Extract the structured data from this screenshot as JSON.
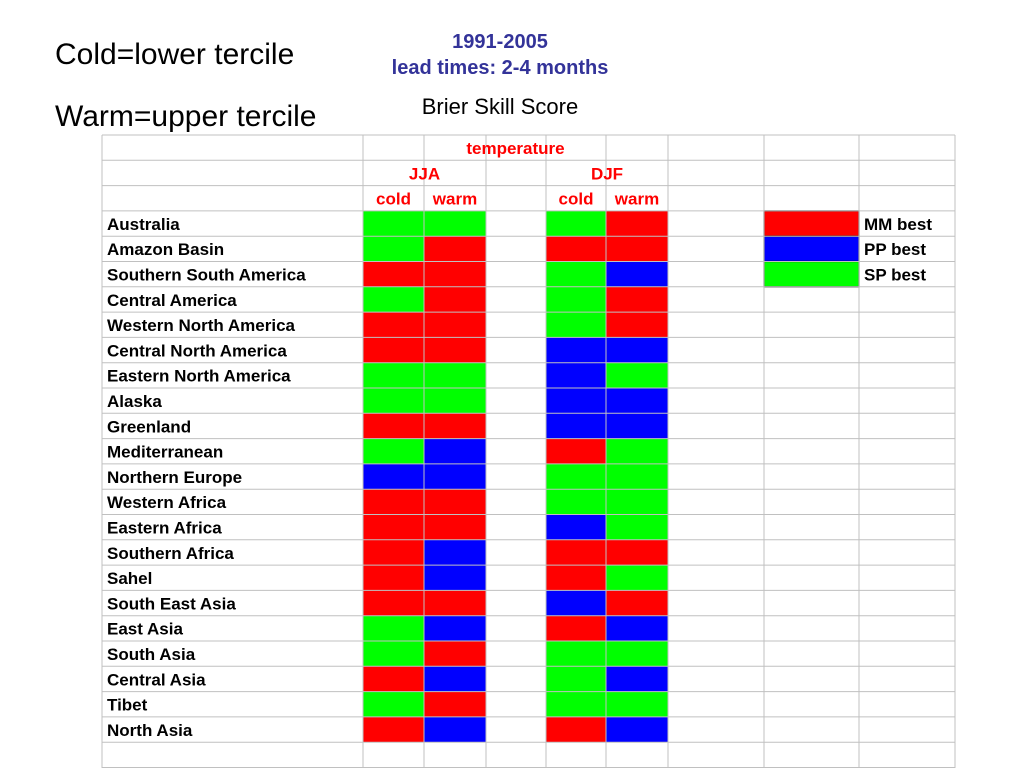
{
  "labels": {
    "cold_def": "Cold=lower tercile",
    "warm_def": "Warm=upper tercile"
  },
  "title": {
    "period": "1991-2005",
    "lead": "lead times: 2-4 months",
    "subtitle": "Brier Skill Score"
  },
  "chart_data": {
    "type": "heatmap",
    "header": {
      "variable": "temperature",
      "seasons": [
        "JJA",
        "DJF"
      ],
      "terciles": [
        "cold",
        "warm"
      ]
    },
    "regions": [
      "Australia",
      "Amazon Basin",
      "Southern South America",
      "Central America",
      "Western North America",
      "Central North America",
      "Eastern North America",
      "Alaska",
      "Greenland",
      "Mediterranean",
      "Northern Europe",
      "Western Africa",
      "Eastern Africa",
      "Southern Africa",
      "Sahel",
      "South East Asia",
      "East Asia",
      "South Asia",
      "Central Asia",
      "Tibet",
      "North Asia"
    ],
    "columns": [
      "JJA cold",
      "JJA warm",
      "DJF cold",
      "DJF warm"
    ],
    "values": [
      [
        "SP",
        "SP",
        "SP",
        "MM"
      ],
      [
        "SP",
        "MM",
        "MM",
        "MM"
      ],
      [
        "MM",
        "MM",
        "SP",
        "PP"
      ],
      [
        "SP",
        "MM",
        "SP",
        "MM"
      ],
      [
        "MM",
        "MM",
        "SP",
        "MM"
      ],
      [
        "MM",
        "MM",
        "PP",
        "PP"
      ],
      [
        "SP",
        "SP",
        "PP",
        "SP"
      ],
      [
        "SP",
        "SP",
        "PP",
        "PP"
      ],
      [
        "MM",
        "MM",
        "PP",
        "PP"
      ],
      [
        "SP",
        "PP",
        "MM",
        "SP"
      ],
      [
        "PP",
        "PP",
        "SP",
        "SP"
      ],
      [
        "MM",
        "MM",
        "SP",
        "SP"
      ],
      [
        "MM",
        "MM",
        "PP",
        "SP"
      ],
      [
        "MM",
        "PP",
        "MM",
        "MM"
      ],
      [
        "MM",
        "PP",
        "MM",
        "SP"
      ],
      [
        "MM",
        "MM",
        "PP",
        "MM"
      ],
      [
        "SP",
        "PP",
        "MM",
        "PP"
      ],
      [
        "SP",
        "MM",
        "SP",
        "SP"
      ],
      [
        "MM",
        "PP",
        "SP",
        "PP"
      ],
      [
        "SP",
        "MM",
        "SP",
        "SP"
      ],
      [
        "MM",
        "PP",
        "MM",
        "PP"
      ]
    ],
    "legend": [
      {
        "key": "MM",
        "label": "MM best",
        "color": "#ff0000"
      },
      {
        "key": "PP",
        "label": "PP best",
        "color": "#0000ff"
      },
      {
        "key": "SP",
        "label": "SP best",
        "color": "#00ff00"
      }
    ],
    "legend_position": "top-right",
    "grid": true
  },
  "colors": {
    "header_red": "#ff0000",
    "title_blue": "#333399",
    "grid_line": "#c0c0c0"
  }
}
